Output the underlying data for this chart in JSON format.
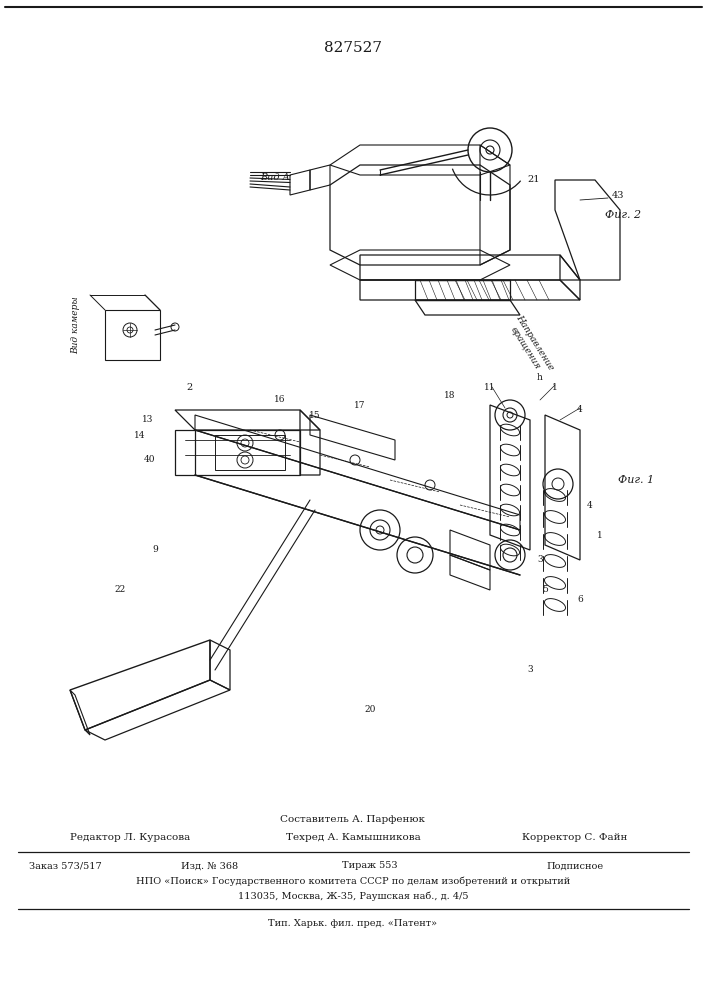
{
  "patent_number": "827527",
  "background_color": "#ffffff",
  "figsize": [
    7.07,
    10.0
  ],
  "dpi": 100,
  "footer_texts": {
    "sostavitel": "Составитель А. Парфенюк",
    "redaktor": "Редактор Л. Курасова",
    "tekhred": "Техред А. Камышникова",
    "korrektor": "Корректор С. Файн",
    "zakaz": "Заказ 573/517",
    "izd": "Изд. № 368",
    "tirazh": "Тираж 553",
    "podpisnoe": "Подписное",
    "npo": "НПО «Поиск» Государственного комитета СССР по делам изобретений и открытий",
    "address": "113035, Москва, Ж-35, Раушская наб., д. 4/5",
    "tip": "Тип. Харьк. фил. пред. «Патент»"
  },
  "fig1_label": "Фиг. 1",
  "fig2_label": "Фиг. 2",
  "vida_label": "Вид A",
  "napravlenie_label": "Направление\nвращения",
  "vid_kamery_label": "Вид камеры"
}
